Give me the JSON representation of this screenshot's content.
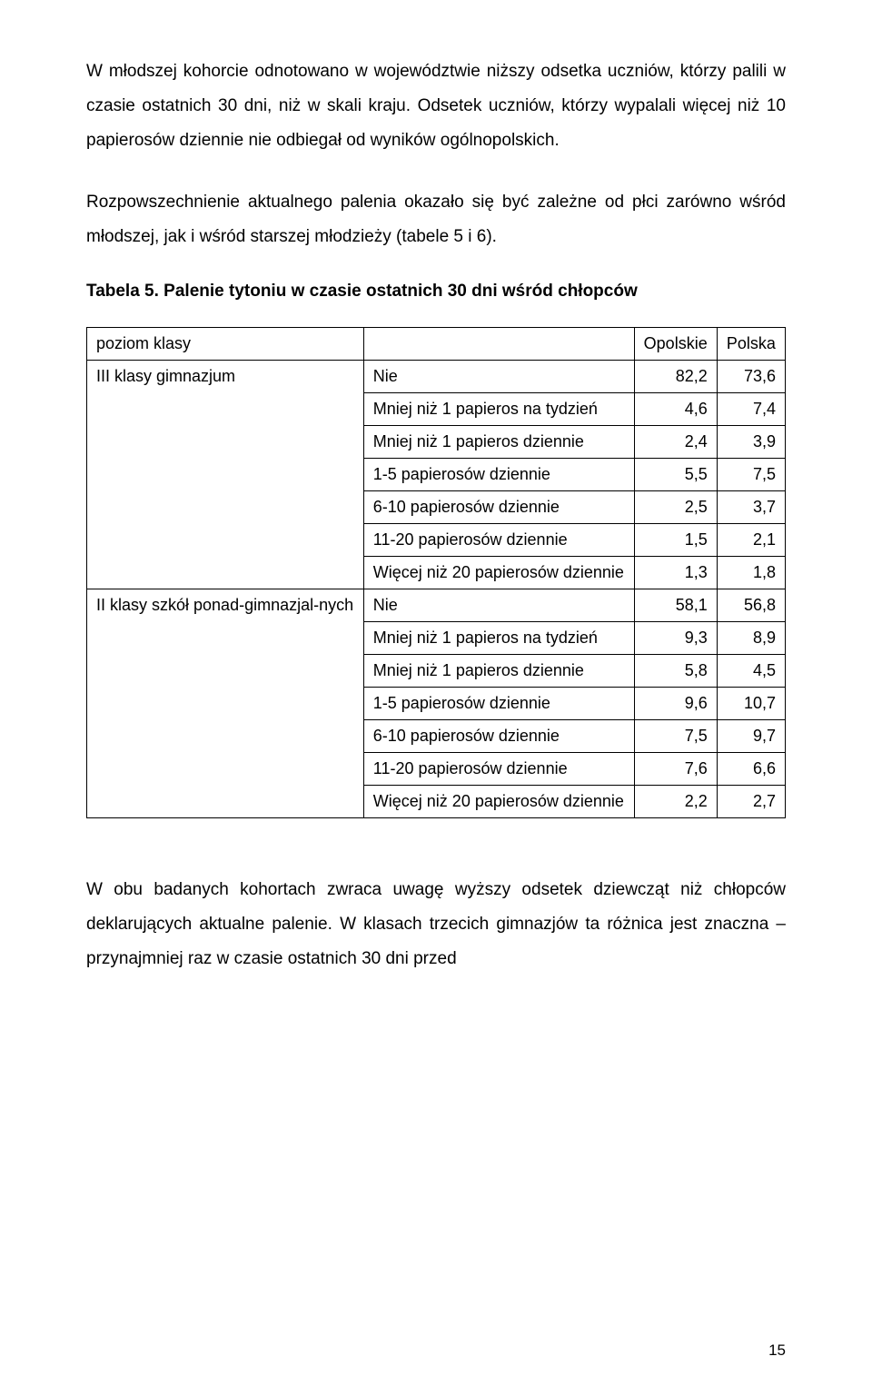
{
  "paragraphs": {
    "p1": "W młodszej kohorcie odnotowano w województwie niższy odsetka uczniów, którzy palili w czasie ostatnich 30 dni, niż w skali kraju. Odsetek uczniów, którzy wypalali więcej niż 10 papierosów dziennie nie odbiegał od wyników ogólnopolskich.",
    "p2": "Rozpowszechnienie aktualnego palenia okazało się być zależne od płci zarówno wśród młodszej, jak i wśród starszej młodzieży (tabele 5 i 6).",
    "p3": "W obu badanych kohortach zwraca uwagę wyższy odsetek dziewcząt niż chłopców deklarujących aktualne palenie. W klasach trzecich gimnazjów ta różnica jest znaczna – przynajmniej raz w czasie ostatnich 30 dni przed"
  },
  "table_caption": "Tabela 5. Palenie tytoniu w czasie ostatnich 30 dni wśród chłopców",
  "table": {
    "header_level": "poziom klasy",
    "col_opolskie": "Opolskie",
    "col_polska": "Polska",
    "group1_label": "III klasy gimnazjum",
    "group2_label": "II klasy szkół ponad-gimnazjal-nych",
    "row_labels": {
      "nie": "Nie",
      "lt1_week": "Mniej niż 1 papieros na tydzień",
      "lt1_day": "Mniej niż 1 papieros dziennie",
      "r1_5": "1-5 papierosów dziennie",
      "r6_10": "6-10 papierosów dziennie",
      "r11_20": "11-20 papierosów dziennie",
      "gt20": "Więcej niż 20 papierosów dziennie"
    },
    "g1": {
      "nie": {
        "op": "82,2",
        "pl": "73,6"
      },
      "lt1_week": {
        "op": "4,6",
        "pl": "7,4"
      },
      "lt1_day": {
        "op": "2,4",
        "pl": "3,9"
      },
      "r1_5": {
        "op": "5,5",
        "pl": "7,5"
      },
      "r6_10": {
        "op": "2,5",
        "pl": "3,7"
      },
      "r11_20": {
        "op": "1,5",
        "pl": "2,1"
      },
      "gt20": {
        "op": "1,3",
        "pl": "1,8"
      }
    },
    "g2": {
      "nie": {
        "op": "58,1",
        "pl": "56,8"
      },
      "lt1_week": {
        "op": "9,3",
        "pl": "8,9"
      },
      "lt1_day": {
        "op": "5,8",
        "pl": "4,5"
      },
      "r1_5": {
        "op": "9,6",
        "pl": "10,7"
      },
      "r6_10": {
        "op": "7,5",
        "pl": "9,7"
      },
      "r11_20": {
        "op": "7,6",
        "pl": "6,6"
      },
      "gt20": {
        "op": "2,2",
        "pl": "2,7"
      }
    }
  },
  "page_number": "15"
}
